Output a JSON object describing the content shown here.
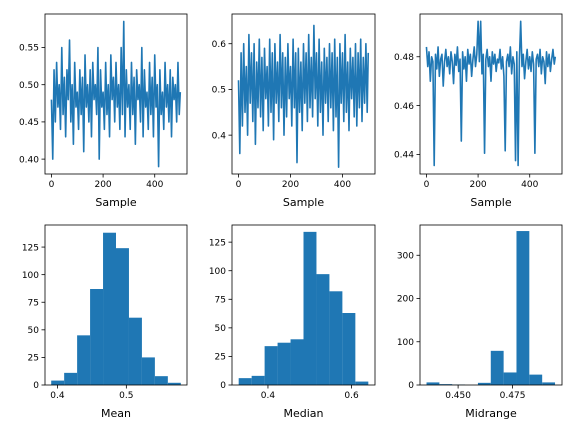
{
  "chart_data": [
    {
      "type": "line",
      "xlabel": "Sample",
      "ylabel": "",
      "xlim": [
        -25,
        525
      ],
      "ylim": [
        0.38,
        0.595
      ],
      "xticks": [
        0,
        200,
        400
      ],
      "xtick_labels": [
        "0",
        "200",
        "400"
      ],
      "yticks": [
        0.4,
        0.45,
        0.5,
        0.55
      ],
      "ytick_labels": [
        "0.40",
        "0.45",
        "0.50",
        "0.55"
      ],
      "color": "#1f77b4",
      "series": [
        {
          "x": [
            0,
            5,
            10,
            15,
            20,
            25,
            30,
            35,
            40,
            45,
            50,
            55,
            60,
            65,
            70,
            75,
            80,
            85,
            90,
            95,
            100,
            105,
            110,
            115,
            120,
            125,
            130,
            135,
            140,
            145,
            150,
            155,
            160,
            165,
            170,
            175,
            180,
            185,
            190,
            195,
            200,
            205,
            210,
            215,
            220,
            225,
            230,
            235,
            240,
            245,
            250,
            255,
            260,
            265,
            270,
            275,
            280,
            285,
            290,
            295,
            300,
            305,
            310,
            315,
            320,
            325,
            330,
            335,
            340,
            345,
            350,
            355,
            360,
            365,
            370,
            375,
            380,
            385,
            390,
            395,
            400,
            405,
            410,
            415,
            420,
            425,
            430,
            435,
            440,
            445,
            450,
            455,
            460,
            465,
            470,
            475,
            480,
            485,
            490,
            495,
            499
          ],
          "y": [
            0.48,
            0.4,
            0.52,
            0.45,
            0.53,
            0.47,
            0.5,
            0.44,
            0.55,
            0.46,
            0.51,
            0.43,
            0.52,
            0.48,
            0.56,
            0.45,
            0.5,
            0.42,
            0.53,
            0.47,
            0.49,
            0.44,
            0.52,
            0.46,
            0.51,
            0.41,
            0.54,
            0.47,
            0.5,
            0.45,
            0.52,
            0.43,
            0.53,
            0.48,
            0.5,
            0.46,
            0.55,
            0.4,
            0.52,
            0.47,
            0.49,
            0.44,
            0.53,
            0.46,
            0.5,
            0.43,
            0.54,
            0.48,
            0.51,
            0.45,
            0.53,
            0.47,
            0.5,
            0.44,
            0.55,
            0.46,
            0.585,
            0.43,
            0.52,
            0.47,
            0.5,
            0.44,
            0.53,
            0.46,
            0.51,
            0.42,
            0.52,
            0.48,
            0.5,
            0.45,
            0.55,
            0.43,
            0.52,
            0.47,
            0.49,
            0.44,
            0.53,
            0.46,
            0.51,
            0.43,
            0.54,
            0.47,
            0.5,
            0.39,
            0.52,
            0.46,
            0.49,
            0.44,
            0.53,
            0.47,
            0.5,
            0.45,
            0.52,
            0.43,
            0.51,
            0.48,
            0.5,
            0.45,
            0.53,
            0.46,
            0.49
          ]
        }
      ]
    },
    {
      "type": "line",
      "xlabel": "Sample",
      "ylabel": "",
      "xlim": [
        -25,
        525
      ],
      "ylim": [
        0.315,
        0.665
      ],
      "xticks": [
        0,
        200,
        400
      ],
      "xtick_labels": [
        "0",
        "200",
        "400"
      ],
      "yticks": [
        0.4,
        0.5,
        0.6
      ],
      "ytick_labels": [
        "0.4",
        "0.5",
        "0.6"
      ],
      "color": "#1f77b4",
      "series": [
        {
          "x": [
            0,
            5,
            10,
            15,
            20,
            25,
            30,
            35,
            40,
            45,
            50,
            55,
            60,
            65,
            70,
            75,
            80,
            85,
            90,
            95,
            100,
            105,
            110,
            115,
            120,
            125,
            130,
            135,
            140,
            145,
            150,
            155,
            160,
            165,
            170,
            175,
            180,
            185,
            190,
            195,
            200,
            205,
            210,
            215,
            220,
            225,
            230,
            235,
            240,
            245,
            250,
            255,
            260,
            265,
            270,
            275,
            280,
            285,
            290,
            295,
            300,
            305,
            310,
            315,
            320,
            325,
            330,
            335,
            340,
            345,
            350,
            355,
            360,
            365,
            370,
            375,
            380,
            385,
            390,
            395,
            400,
            405,
            410,
            415,
            420,
            425,
            430,
            435,
            440,
            445,
            450,
            455,
            460,
            465,
            470,
            475,
            480,
            485,
            490,
            495,
            499
          ],
          "y": [
            0.52,
            0.36,
            0.58,
            0.42,
            0.6,
            0.45,
            0.55,
            0.4,
            0.62,
            0.47,
            0.58,
            0.43,
            0.6,
            0.38,
            0.56,
            0.46,
            0.61,
            0.44,
            0.57,
            0.41,
            0.59,
            0.48,
            0.55,
            0.42,
            0.61,
            0.45,
            0.58,
            0.39,
            0.6,
            0.47,
            0.56,
            0.43,
            0.62,
            0.46,
            0.58,
            0.4,
            0.57,
            0.44,
            0.6,
            0.48,
            0.55,
            0.42,
            0.61,
            0.46,
            0.58,
            0.34,
            0.59,
            0.45,
            0.56,
            0.41,
            0.6,
            0.47,
            0.58,
            0.43,
            0.62,
            0.46,
            0.57,
            0.44,
            0.64,
            0.48,
            0.58,
            0.42,
            0.61,
            0.45,
            0.56,
            0.4,
            0.59,
            0.47,
            0.57,
            0.43,
            0.6,
            0.46,
            0.58,
            0.41,
            0.61,
            0.44,
            0.57,
            0.33,
            0.6,
            0.47,
            0.58,
            0.43,
            0.62,
            0.45,
            0.56,
            0.41,
            0.59,
            0.48,
            0.57,
            0.44,
            0.6,
            0.42,
            0.58,
            0.46,
            0.61,
            0.43,
            0.57,
            0.47,
            0.6,
            0.45,
            0.58
          ]
        }
      ]
    },
    {
      "type": "line",
      "xlabel": "Sample",
      "ylabel": "",
      "xlim": [
        -25,
        525
      ],
      "ylim": [
        0.432,
        0.4975
      ],
      "xticks": [
        0,
        200,
        400
      ],
      "xtick_labels": [
        "0",
        "200",
        "400"
      ],
      "yticks": [
        0.44,
        0.46,
        0.48
      ],
      "ytick_labels": [
        "0.44",
        "0.46",
        "0.48"
      ],
      "color": "#1f77b4",
      "series": [
        {
          "x": [
            0,
            5,
            10,
            15,
            20,
            25,
            30,
            35,
            40,
            45,
            50,
            55,
            60,
            65,
            70,
            75,
            80,
            85,
            90,
            95,
            100,
            105,
            110,
            115,
            120,
            125,
            130,
            135,
            140,
            145,
            150,
            155,
            160,
            165,
            170,
            175,
            180,
            185,
            190,
            195,
            200,
            205,
            210,
            215,
            220,
            225,
            230,
            235,
            240,
            245,
            250,
            255,
            260,
            265,
            270,
            275,
            280,
            285,
            290,
            295,
            300,
            305,
            310,
            315,
            320,
            325,
            330,
            335,
            340,
            345,
            350,
            355,
            360,
            365,
            370,
            375,
            380,
            385,
            390,
            395,
            400,
            405,
            410,
            415,
            420,
            425,
            430,
            435,
            440,
            445,
            450,
            455,
            460,
            465,
            470,
            475,
            480,
            485,
            490,
            495,
            499
          ],
          "y": [
            0.484,
            0.476,
            0.482,
            0.47,
            0.48,
            0.478,
            0.4355,
            0.481,
            0.475,
            0.484,
            0.472,
            0.479,
            0.481,
            0.468,
            0.478,
            0.483,
            0.476,
            0.48,
            0.473,
            0.482,
            0.478,
            0.469,
            0.481,
            0.4765,
            0.484,
            0.474,
            0.479,
            0.4455,
            0.482,
            0.475,
            0.48,
            0.47,
            0.483,
            0.477,
            0.481,
            0.472,
            0.479,
            0.484,
            0.476,
            0.481,
            0.4945,
            0.478,
            0.4945,
            0.473,
            0.481,
            0.4405,
            0.479,
            0.483,
            0.476,
            0.48,
            0.47,
            0.482,
            0.477,
            0.481,
            0.474,
            0.479,
            0.4775,
            0.483,
            0.475,
            0.48,
            0.472,
            0.4415,
            0.478,
            0.481,
            0.476,
            0.484,
            0.473,
            0.48,
            0.477,
            0.4375,
            0.482,
            0.4355,
            0.479,
            0.4945,
            0.476,
            0.481,
            0.471,
            0.478,
            0.483,
            0.475,
            0.48,
            0.474,
            0.482,
            0.477,
            0.4405,
            0.479,
            0.481,
            0.476,
            0.483,
            0.473,
            0.48,
            0.478,
            0.469,
            0.482,
            0.476,
            0.481,
            0.474,
            0.479,
            0.483,
            0.477,
            0.48
          ]
        }
      ]
    },
    {
      "type": "bar",
      "subtype": "histogram",
      "xlabel": "Mean",
      "ylabel": "",
      "xlim": [
        0.382,
        0.588
      ],
      "ylim": [
        0,
        145
      ],
      "xticks": [
        0.4,
        0.5
      ],
      "xtick_labels": [
        "0.4",
        "0.5"
      ],
      "yticks": [
        0,
        25,
        50,
        75,
        100,
        125
      ],
      "ytick_labels": [
        "0",
        "25",
        "50",
        "75",
        "100",
        "125"
      ],
      "color": "#1f77b4",
      "bin_edges": [
        0.391,
        0.4098,
        0.4286,
        0.4474,
        0.4662,
        0.485,
        0.5038,
        0.5226,
        0.5414,
        0.5602,
        0.579
      ],
      "values": [
        4,
        11,
        45,
        87,
        138,
        124,
        61,
        25,
        8,
        2
      ]
    },
    {
      "type": "bar",
      "subtype": "histogram",
      "xlabel": "Median",
      "ylabel": "",
      "xlim": [
        0.314,
        0.656
      ],
      "ylim": [
        0,
        140
      ],
      "xticks": [
        0.4,
        0.6
      ],
      "xtick_labels": [
        "0.4",
        "0.6"
      ],
      "yticks": [
        0,
        25,
        50,
        75,
        100,
        125
      ],
      "ytick_labels": [
        "0",
        "25",
        "50",
        "75",
        "100",
        "125"
      ],
      "color": "#1f77b4",
      "bin_edges": [
        0.33,
        0.361,
        0.392,
        0.423,
        0.454,
        0.485,
        0.516,
        0.547,
        0.578,
        0.609,
        0.64
      ],
      "values": [
        6,
        8,
        34,
        37,
        40,
        134,
        97,
        82,
        63,
        3
      ]
    },
    {
      "type": "bar",
      "subtype": "histogram",
      "xlabel": "Midrange",
      "ylabel": "",
      "xlim": [
        0.4325,
        0.4977
      ],
      "ylim": [
        0,
        370
      ],
      "xticks": [
        0.45,
        0.475
      ],
      "xtick_labels": [
        "0.450",
        "0.475"
      ],
      "yticks": [
        0,
        100,
        200,
        300
      ],
      "ytick_labels": [
        "0",
        "100",
        "200",
        "300"
      ],
      "color": "#1f77b4",
      "bin_edges": [
        0.4355,
        0.4414,
        0.4473,
        0.4532,
        0.4591,
        0.465,
        0.4709,
        0.4768,
        0.4827,
        0.4886,
        0.4945
      ],
      "values": [
        6,
        2,
        1,
        0,
        5,
        79,
        29,
        356,
        24,
        6
      ]
    }
  ]
}
